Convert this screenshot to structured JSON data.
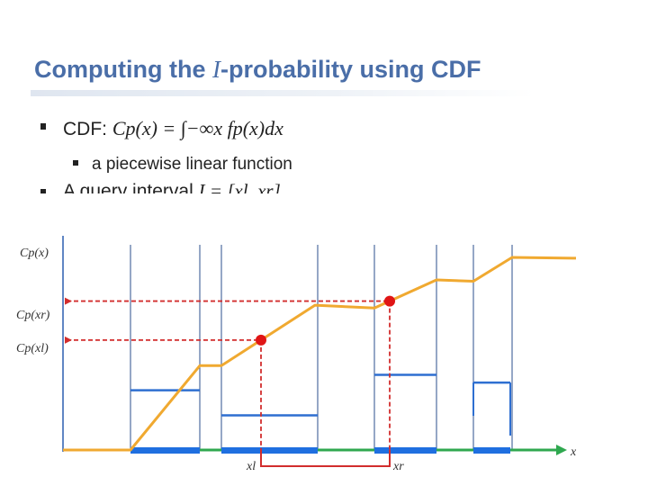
{
  "slide": {
    "title_prefix": "Computing the ",
    "title_math": "I",
    "title_suffix": "-probability using CDF",
    "bullet1_label": "CDF: ",
    "bullet1_formula": "Cp(x) = ∫−∞x fp(x)dx",
    "bullet2": "a piecewise linear function",
    "bullet3_label": "A query interval ",
    "bullet3_formula": "I = [xl, xr]"
  },
  "chart_data": {
    "type": "line",
    "xlabel": "x",
    "ylabel": "Cp(x)",
    "tick_labels_y": [
      "Cp(xr)",
      "Cp(xl)"
    ],
    "tick_labels_x": [
      "xl",
      "xr"
    ],
    "cdf_points": [
      [
        70,
        0.0
      ],
      [
        145,
        0.0
      ],
      [
        222,
        0.438
      ],
      [
        246,
        0.438
      ],
      [
        350,
        0.752
      ],
      [
        416,
        0.737
      ],
      [
        485,
        0.883
      ],
      [
        526,
        0.876
      ],
      [
        569,
        1.0
      ],
      [
        640,
        0.996
      ]
    ],
    "boundaries": [
      145,
      222,
      246,
      353,
      416,
      485,
      526,
      569
    ],
    "pdf_segments": [
      {
        "x1": 145,
        "x2": 222,
        "density": 0.31
      },
      {
        "x1": 246,
        "x2": 353,
        "density": 0.18
      },
      {
        "x1": 416,
        "x2": 485,
        "density": 0.39
      },
      {
        "x1": 526,
        "x2": 567,
        "density": 0.35
      }
    ],
    "support_segments": [
      [
        145,
        222
      ],
      [
        246,
        353
      ],
      [
        416,
        485
      ],
      [
        526,
        567
      ]
    ],
    "query": {
      "xl": 290,
      "xr": 433
    },
    "colors": {
      "cdf": "#f0a930",
      "pdf": "#2e6fd1",
      "grid": "#2b4f8c",
      "dashed": "#d22d2d",
      "interval": "#d22d2d",
      "axis_y": "#2b5fb0",
      "axis_x": "#2fa84f",
      "support": "#1f6fe0",
      "points": "#e01515"
    }
  }
}
